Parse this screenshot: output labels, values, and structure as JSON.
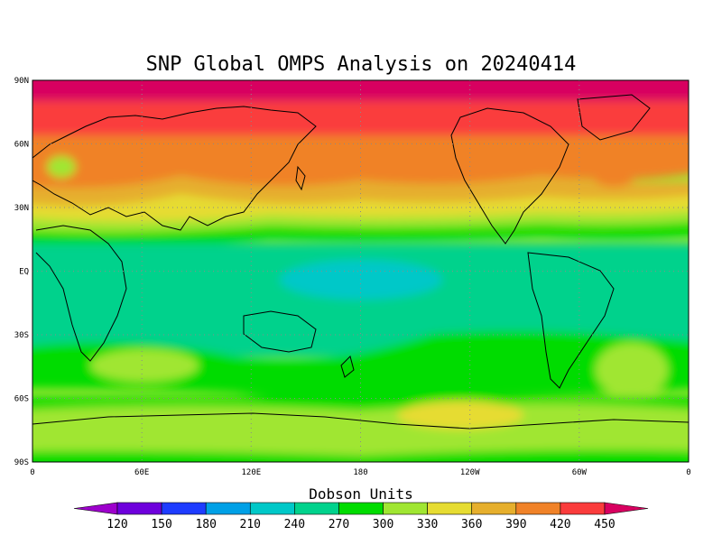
{
  "title": "SNP Global OMPS Analysis on 20240414",
  "map": {
    "lat_labels": [
      "90N",
      "60N",
      "30N",
      "EQ",
      "30S",
      "60S",
      "90S"
    ],
    "lon_labels": [
      "0",
      "60E",
      "120E",
      "180",
      "120W",
      "60W",
      "0"
    ],
    "grid": "dotted"
  },
  "colorbar": {
    "title": "Dobson Units",
    "levels": [
      "120",
      "150",
      "180",
      "210",
      "240",
      "270",
      "300",
      "330",
      "360",
      "390",
      "420",
      "450"
    ],
    "colors": [
      "#a000c8",
      "#6e00dc",
      "#1e3cff",
      "#00a0e6",
      "#00c8c8",
      "#00d28c",
      "#00dc00",
      "#a0e632",
      "#e6dc32",
      "#e6af2d",
      "#f08228",
      "#fa3c3c"
    ],
    "low_color": "#9d00cc",
    "high_color": "#d80060"
  }
}
